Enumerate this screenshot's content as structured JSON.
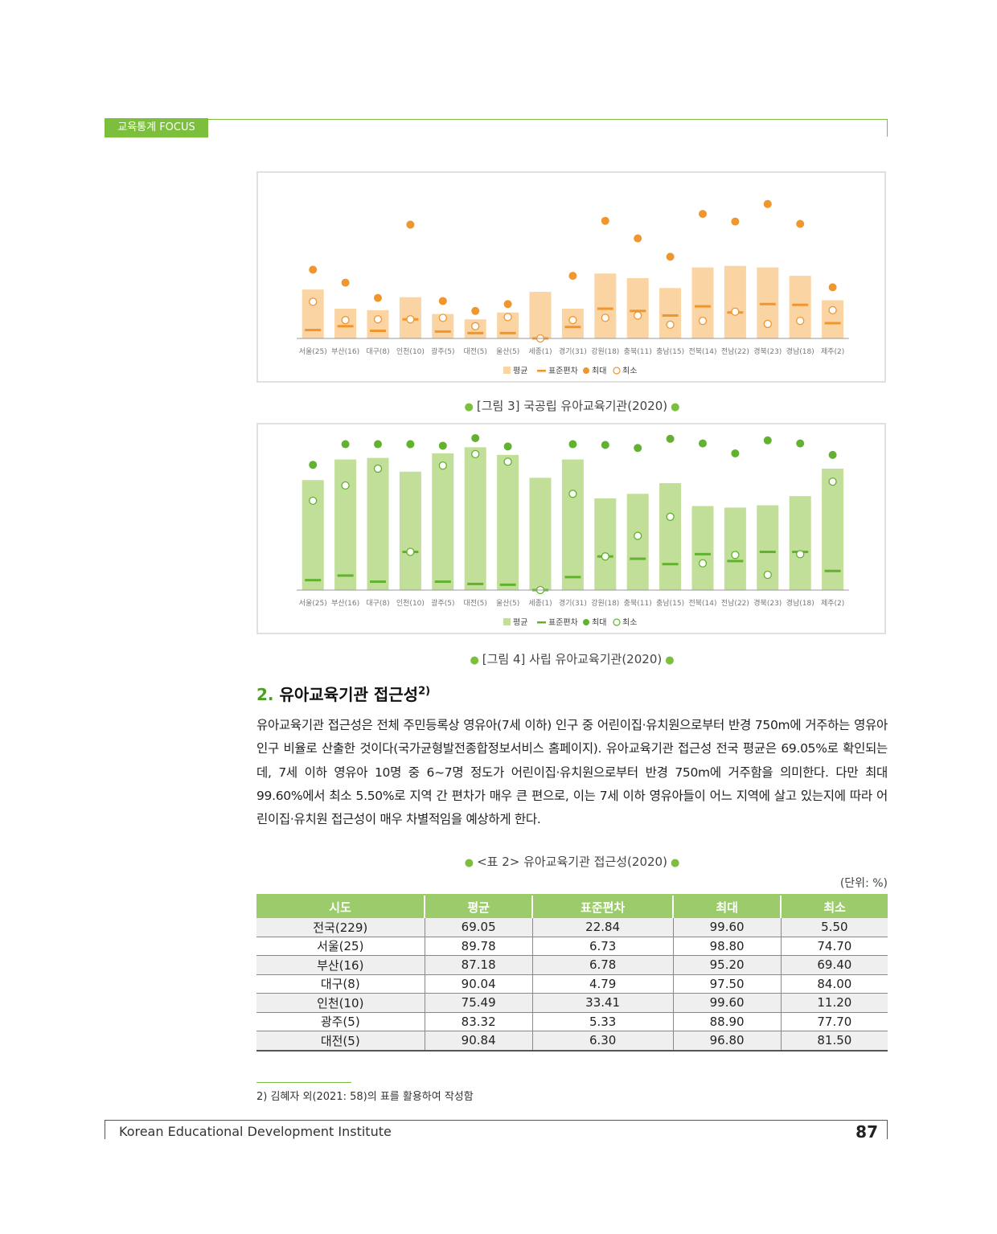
{
  "header": {
    "tab_label": "교육통계 FOCUS"
  },
  "regions": [
    "서울(25)",
    "부산(16)",
    "대구(8)",
    "인천(10)",
    "광주(5)",
    "대전(5)",
    "울산(5)",
    "세종(1)",
    "경기(31)",
    "강원(18)",
    "충북(11)",
    "충남(15)",
    "전북(14)",
    "전남(22)",
    "경북(23)",
    "경남(18)",
    "제주(2)"
  ],
  "legend_labels": {
    "mean": "평균",
    "sd": "표준편차",
    "max": "최대",
    "min": "최소"
  },
  "chart_data": [
    {
      "type": "bar",
      "id": "public",
      "colors": {
        "bar": "#fbd4a3",
        "accent": "#f0962e"
      },
      "categories": [
        "서울(25)",
        "부산(16)",
        "대구(8)",
        "인천(10)",
        "광주(5)",
        "대전(5)",
        "울산(5)",
        "세종(1)",
        "경기(31)",
        "강원(18)",
        "충북(11)",
        "충남(15)",
        "전북(14)",
        "전남(22)",
        "경북(23)",
        "경남(18)",
        "제주(2)"
      ],
      "ylim": [
        0,
        100
      ],
      "series": [
        {
          "name": "평균",
          "values": [
            32.0,
            19.5,
            18.5,
            27.0,
            16.0,
            12.5,
            17.0,
            30.5,
            19.5,
            42.5,
            39.5,
            33.0,
            46.5,
            47.5,
            46.5,
            41.0,
            25.0
          ]
        },
        {
          "name": "표준편차",
          "values": [
            5.5,
            8.0,
            5.0,
            12.5,
            4.5,
            3.5,
            3.5,
            0.0,
            7.5,
            19.5,
            18.0,
            15.0,
            21.0,
            17.0,
            22.5,
            22.0,
            10.0
          ]
        },
        {
          "name": "최대",
          "values": [
            45.0,
            36.5,
            26.5,
            74.5,
            24.5,
            18.0,
            22.5,
            0.0,
            41.0,
            77.0,
            65.5,
            53.5,
            81.5,
            76.5,
            88.0,
            75.0,
            33.5
          ]
        },
        {
          "name": "최소",
          "values": [
            24.0,
            12.0,
            12.5,
            12.5,
            13.5,
            8.0,
            14.0,
            0.0,
            12.0,
            13.5,
            15.0,
            9.0,
            11.5,
            17.5,
            9.5,
            11.5,
            18.5
          ]
        }
      ]
    },
    {
      "type": "bar",
      "id": "private",
      "colors": {
        "bar": "#c1df98",
        "accent": "#62b22f"
      },
      "categories": [
        "서울(25)",
        "부산(16)",
        "대구(8)",
        "인천(10)",
        "광주(5)",
        "대전(5)",
        "울산(5)",
        "세종(1)",
        "경기(31)",
        "강원(18)",
        "충북(11)",
        "충남(15)",
        "전북(14)",
        "전남(22)",
        "경북(23)",
        "경남(18)",
        "제주(2)"
      ],
      "ylim": [
        0,
        100
      ],
      "series": [
        {
          "name": "평균",
          "values": [
            72.0,
            85.5,
            86.5,
            77.5,
            89.5,
            93.5,
            88.5,
            73.5,
            85.5,
            60.0,
            63.0,
            70.0,
            55.0,
            54.0,
            55.5,
            61.5,
            79.5
          ]
        },
        {
          "name": "표준편차",
          "values": [
            6.5,
            9.5,
            5.5,
            25.0,
            5.5,
            4.0,
            3.5,
            0.0,
            8.5,
            22.0,
            20.5,
            17.0,
            23.5,
            19.0,
            25.0,
            25.0,
            12.5
          ]
        },
        {
          "name": "최대",
          "values": [
            82.0,
            95.5,
            95.5,
            95.5,
            94.5,
            99.5,
            94.0,
            0.0,
            95.5,
            95.0,
            93.0,
            99.0,
            96.0,
            89.5,
            98.0,
            96.0,
            88.5
          ]
        },
        {
          "name": "최소",
          "values": [
            58.5,
            68.5,
            79.5,
            25.0,
            81.5,
            89.0,
            84.0,
            0.0,
            63.0,
            22.0,
            35.5,
            48.0,
            17.5,
            23.0,
            10.0,
            23.5,
            71.0
          ]
        }
      ]
    }
  ],
  "captions": {
    "fig3": "[그림 3] 국공립 유아교육기관(2020)",
    "fig4": "[그림 4] 사립 유아교육기관(2020)",
    "table2": "<표 2> 유아교육기관 접근성(2020)"
  },
  "section": {
    "number": "2.",
    "title": "유아교육기관 접근성",
    "sup": "2)"
  },
  "body_text": "유아교육기관 접근성은 전체 주민등록상 영유아(7세 이하) 인구 중 어린이집·유치원으로부터 반경 750m에 거주하는 영유아 인구 비율로 산출한 것이다(국가균형발전종합정보서비스 홈페이지). 유아교육기관 접근성 전국 평균은 69.05%로 확인되는데, 7세 이하 영유아 10명 중 6~7명 정도가 어린이집·유치원으로부터 반경 750m에 거주함을 의미한다. 다만 최대 99.60%에서 최소 5.50%로 지역 간 편차가 매우 큰 편으로, 이는 7세 이하 영유아들이 어느 지역에 살고 있는지에 따라 어린이집·유치원 접근성이 매우 차별적임을 예상하게 한다.",
  "table": {
    "unit": "(단위: %)",
    "headers": [
      "시도",
      "평균",
      "표준편차",
      "최대",
      "최소"
    ],
    "rows": [
      [
        "전국(229)",
        "69.05",
        "22.84",
        "99.60",
        "5.50"
      ],
      [
        "서울(25)",
        "89.78",
        "6.73",
        "98.80",
        "74.70"
      ],
      [
        "부산(16)",
        "87.18",
        "6.78",
        "95.20",
        "69.40"
      ],
      [
        "대구(8)",
        "90.04",
        "4.79",
        "97.50",
        "84.00"
      ],
      [
        "인천(10)",
        "75.49",
        "33.41",
        "99.60",
        "11.20"
      ],
      [
        "광주(5)",
        "83.32",
        "5.33",
        "88.90",
        "77.70"
      ],
      [
        "대전(5)",
        "90.84",
        "6.30",
        "96.80",
        "81.50"
      ]
    ]
  },
  "footnote": "2)  김혜자 외(2021: 58)의 표를 활용하여 작성함",
  "footer": {
    "org": "Korean Educational Development Institute",
    "page": "87"
  }
}
